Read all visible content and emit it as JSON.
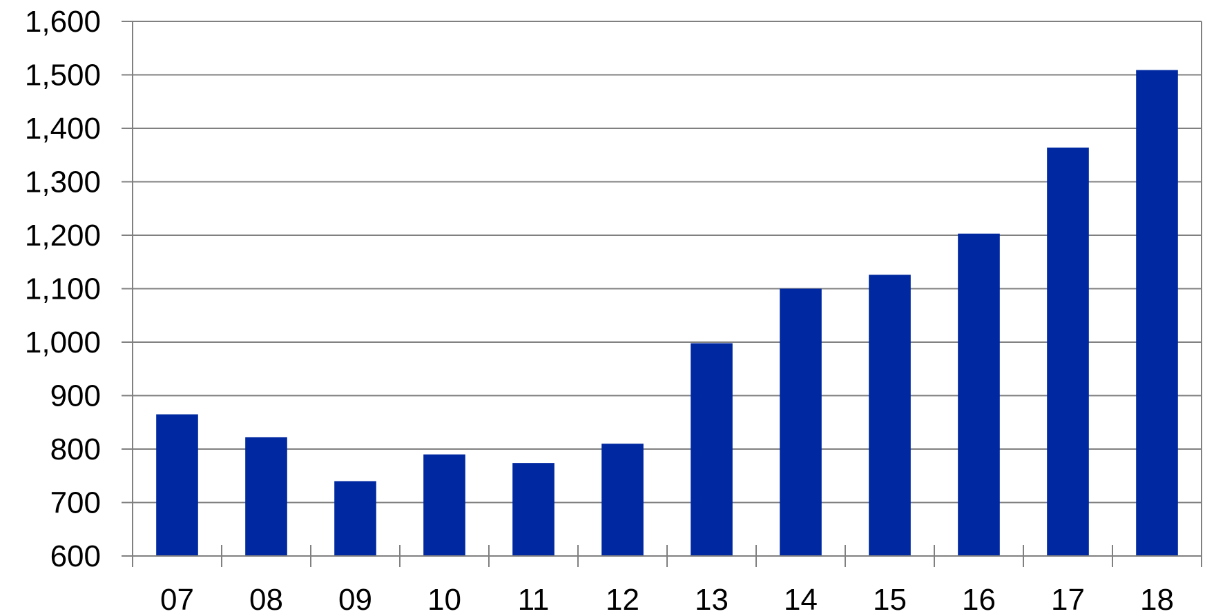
{
  "chart_data": {
    "type": "bar",
    "title": "",
    "xlabel": "",
    "ylabel": "",
    "categories": [
      "07",
      "08",
      "09",
      "10",
      "11",
      "12",
      "13",
      "14",
      "15",
      "16",
      "17",
      "18"
    ],
    "series": [
      {
        "values": [
          865,
          822,
          740,
          790,
          774,
          810,
          998,
          1100,
          1126,
          1203,
          1364,
          1509
        ]
      }
    ],
    "ylim": [
      600,
      1600
    ],
    "yticks": [
      600,
      700,
      800,
      900,
      1000,
      1100,
      1200,
      1300,
      1400,
      1500,
      1600
    ],
    "ytick_labels": [
      "600",
      "700",
      "800",
      "900",
      "1,000",
      "1,100",
      "1,200",
      "1,300",
      "1,400",
      "1,500",
      "1,600"
    ],
    "grid": true,
    "legend": "none",
    "colors": {
      "bar": "#0028A0",
      "grid": "#808080",
      "axis": "#808080"
    }
  }
}
